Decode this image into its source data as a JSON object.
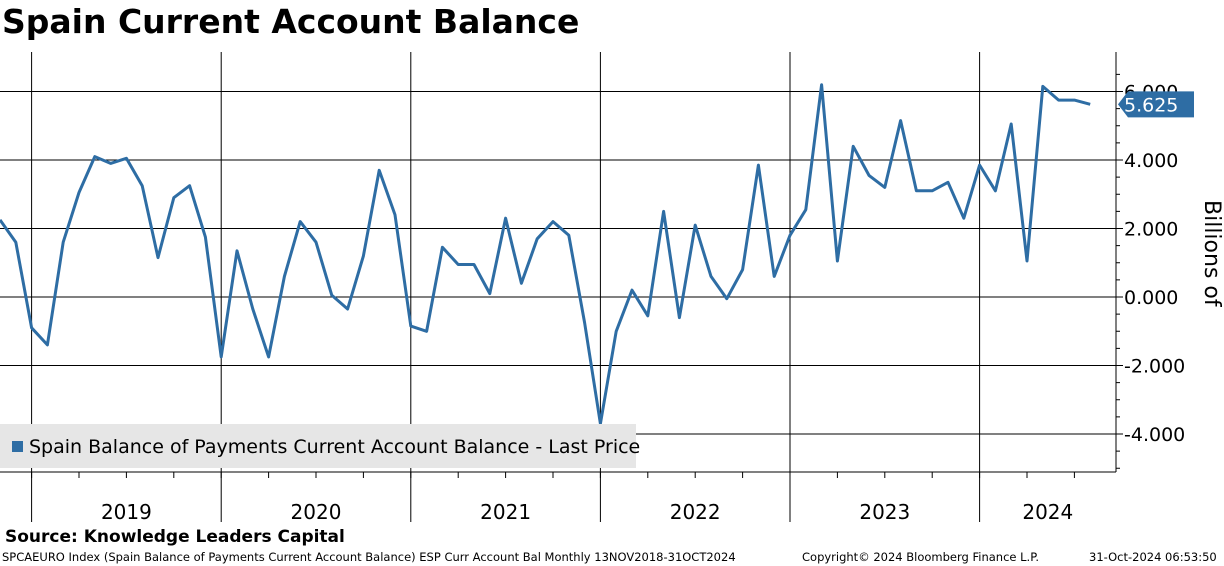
{
  "title": "Spain Current Account Balance",
  "source": "Source: Knowledge Leaders Capital",
  "footer": {
    "left": "SPCAEURO Index (Spain Balance of Payments Current Account Balance) ESP Curr Account Bal  Monthly 13NOV2018-31OCT2024",
    "middle": "Copyright© 2024 Bloomberg Finance L.P.",
    "right": "31-Oct-2024 06:53:50"
  },
  "legend": {
    "label": "Spain Balance of Payments Current Account Balance - Last Price"
  },
  "last_value_label": "5.625",
  "colors": {
    "line": "#2e6da4",
    "legend_bg": "#e6e6e6",
    "grid": "#000000"
  },
  "chart_data": {
    "type": "line",
    "title": "Spain Current Account Balance",
    "ylabel": "Billions of",
    "ylim": [
      -5,
      7
    ],
    "yticks": [
      -4,
      -2,
      0,
      2,
      4,
      6
    ],
    "ytick_labels": [
      "-4.000",
      "-2.000",
      "0.000",
      "2.000",
      "4.000",
      "6.000"
    ],
    "x_range": [
      "2018-11",
      "2024-10"
    ],
    "x_period_labels": [
      "2019",
      "2020",
      "2021",
      "2022",
      "2023",
      "2024"
    ],
    "grid": true,
    "legend_position": "bottom-left",
    "series": [
      {
        "name": "Spain Balance of Payments Current Account Balance - Last Price",
        "x": [
          "2018-11",
          "2018-12",
          "2019-01",
          "2019-02",
          "2019-03",
          "2019-04",
          "2019-05",
          "2019-06",
          "2019-07",
          "2019-08",
          "2019-09",
          "2019-10",
          "2019-11",
          "2019-12",
          "2020-01",
          "2020-02",
          "2020-03",
          "2020-04",
          "2020-05",
          "2020-06",
          "2020-07",
          "2020-08",
          "2020-09",
          "2020-10",
          "2020-11",
          "2020-12",
          "2021-01",
          "2021-02",
          "2021-03",
          "2021-04",
          "2021-05",
          "2021-06",
          "2021-07",
          "2021-08",
          "2021-09",
          "2021-10",
          "2021-11",
          "2021-12",
          "2022-01",
          "2022-02",
          "2022-03",
          "2022-04",
          "2022-05",
          "2022-06",
          "2022-07",
          "2022-08",
          "2022-09",
          "2022-10",
          "2022-11",
          "2022-12",
          "2023-01",
          "2023-02",
          "2023-03",
          "2023-04",
          "2023-05",
          "2023-06",
          "2023-07",
          "2023-08",
          "2023-09",
          "2023-10",
          "2023-11",
          "2023-12",
          "2024-01",
          "2024-02",
          "2024-03",
          "2024-04",
          "2024-05",
          "2024-06",
          "2024-07",
          "2024-08"
        ],
        "values": [
          2.25,
          1.6,
          -0.9,
          -1.4,
          1.6,
          3.05,
          4.1,
          3.9,
          4.05,
          3.25,
          1.15,
          2.9,
          3.25,
          1.75,
          -1.75,
          1.35,
          -0.35,
          -1.75,
          0.6,
          2.2,
          1.6,
          0.05,
          -0.35,
          1.2,
          3.7,
          2.4,
          -0.85,
          -1.0,
          1.45,
          0.95,
          0.95,
          0.1,
          2.3,
          0.4,
          1.7,
          2.2,
          1.8,
          -0.75,
          -3.7,
          -1.0,
          0.2,
          -0.55,
          2.5,
          -0.6,
          2.1,
          0.6,
          -0.05,
          0.8,
          3.85,
          0.6,
          1.8,
          2.55,
          6.2,
          1.05,
          4.4,
          3.55,
          3.2,
          5.15,
          3.1,
          3.1,
          3.35,
          2.3,
          3.85,
          3.1,
          5.05,
          1.05,
          6.15,
          5.75,
          5.75,
          5.625
        ]
      }
    ]
  }
}
